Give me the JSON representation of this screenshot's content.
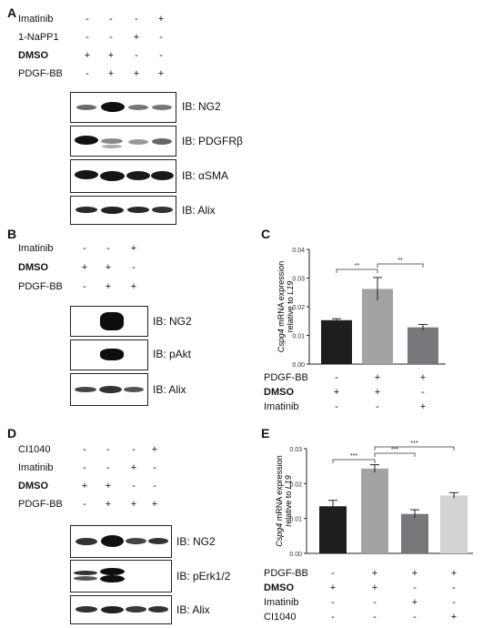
{
  "panelA": {
    "letter": "A",
    "rows": [
      {
        "label": "Imatinib",
        "signs": [
          "-",
          "-",
          "-",
          "+"
        ]
      },
      {
        "label": "1-NaPP1",
        "signs": [
          "-",
          "-",
          "+",
          "-"
        ]
      },
      {
        "label": "DMSO",
        "signs": [
          "+",
          "+",
          "-",
          "-"
        ]
      },
      {
        "label": "PDGF-BB",
        "signs": [
          "-",
          "+",
          "+",
          "+"
        ]
      }
    ],
    "blots": [
      "IB: NG2",
      "IB: PDGFRβ",
      "IB: αSMA",
      "IB: Alix"
    ]
  },
  "panelB": {
    "letter": "B",
    "rows": [
      {
        "label": "Imatinib",
        "signs": [
          "-",
          "-",
          "+"
        ]
      },
      {
        "label": "DMSO",
        "signs": [
          "+",
          "+",
          "-"
        ]
      },
      {
        "label": "PDGF-BB",
        "signs": [
          "-",
          "+",
          "+"
        ]
      }
    ],
    "blots": [
      "IB: NG2",
      "IB: pAkt",
      "IB: Alix"
    ]
  },
  "panelC": {
    "letter": "C",
    "rows": [
      {
        "label": "PDGF-BB",
        "signs": [
          "-",
          "+",
          "+"
        ]
      },
      {
        "label": "DMSO",
        "signs": [
          "+",
          "+",
          "-"
        ]
      },
      {
        "label": "Imatinib",
        "signs": [
          "-",
          "-",
          "+"
        ]
      }
    ]
  },
  "panelD": {
    "letter": "D",
    "rows": [
      {
        "label": "CI1040",
        "signs": [
          "-",
          "-",
          "-",
          "+"
        ]
      },
      {
        "label": "Imatinib",
        "signs": [
          "-",
          "-",
          "+",
          "-"
        ]
      },
      {
        "label": "DMSO",
        "signs": [
          "+",
          "+",
          "-",
          "-"
        ]
      },
      {
        "label": "PDGF-BB",
        "signs": [
          "-",
          "+",
          "+",
          "+"
        ]
      }
    ],
    "blots": [
      "IB: NG2",
      "IB: pErk1/2",
      "IB: Alix"
    ]
  },
  "panelE": {
    "letter": "E",
    "rows": [
      {
        "label": "PDGF-BB",
        "signs": [
          "-",
          "+",
          "+",
          "+"
        ]
      },
      {
        "label": "DMSO",
        "signs": [
          "+",
          "+",
          "-",
          "-"
        ]
      },
      {
        "label": "Imatinib",
        "signs": [
          "-",
          "-",
          "+",
          "-"
        ]
      },
      {
        "label": "CI1040",
        "signs": [
          "-",
          "-",
          "-",
          "+"
        ]
      }
    ]
  },
  "chart_data": [
    {
      "type": "bar",
      "panel": "C",
      "ylabel_italic": "Cspg4",
      "ylabel_rest": " mRNA expression",
      "ylabel_line2_prefix": "relative to ",
      "ylabel_line2_italic": "L19",
      "ylim": [
        0,
        0.04
      ],
      "yticks": [
        "0.00",
        "0.01",
        "0.02",
        "0.03",
        "0.04"
      ],
      "values": [
        0.0153,
        0.0262,
        0.0128
      ],
      "errors": [
        0.0005,
        0.004,
        0.001
      ],
      "colors": [
        "#1e1e1e",
        "#a3a3a5",
        "#77787b"
      ],
      "significance": [
        {
          "from": 0,
          "to": 1,
          "label": "**"
        },
        {
          "from": 1,
          "to": 2,
          "label": "**"
        }
      ]
    },
    {
      "type": "bar",
      "panel": "E",
      "ylabel_italic": "Cspg4",
      "ylabel_rest": " mRNA expression",
      "ylabel_line2_prefix": "relative to ",
      "ylabel_line2_italic": "L19",
      "ylim": [
        0,
        0.03
      ],
      "yticks": [
        "0.00",
        "0.01",
        "0.02",
        "0.03"
      ],
      "values": [
        0.0135,
        0.0243,
        0.0113,
        0.0166
      ],
      "errors": [
        0.0017,
        0.0011,
        0.0012,
        0.0008
      ],
      "colors": [
        "#1e1e1e",
        "#a3a3a5",
        "#77787b",
        "#d2d3d4"
      ],
      "significance": [
        {
          "from": 0,
          "to": 1,
          "label": "***"
        },
        {
          "from": 1,
          "to": 2,
          "label": "***"
        },
        {
          "from": 1,
          "to": 3,
          "label": "***"
        }
      ]
    }
  ]
}
